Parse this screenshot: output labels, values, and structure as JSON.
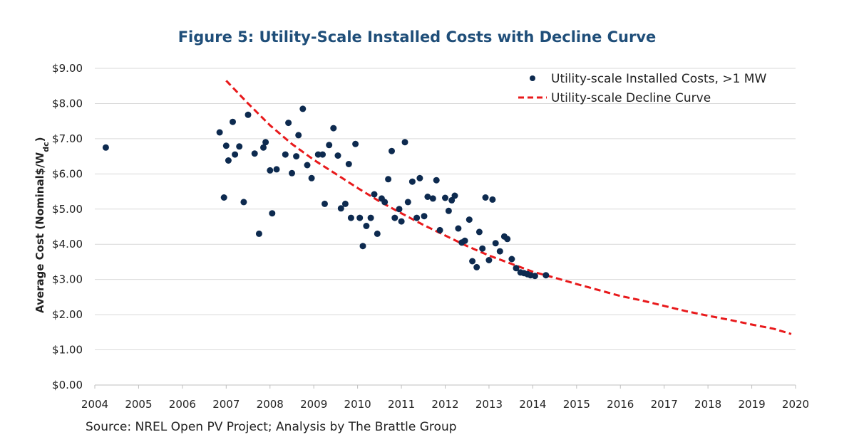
{
  "chart_data": {
    "type": "scatter",
    "title": "Figure 5: Utility-Scale Installed Costs with Decline Curve",
    "ylabel_main": "Average Cost (Nominal$/W",
    "ylabel_sub": "dc",
    "ylabel_close": ")",
    "xlabel": "",
    "xlim": [
      2004,
      2020
    ],
    "ylim": [
      0,
      9
    ],
    "x_ticks": [
      "2004",
      "2005",
      "2006",
      "2007",
      "2008",
      "2009",
      "2010",
      "2011",
      "2012",
      "2013",
      "2014",
      "2015",
      "2016",
      "2017",
      "2018",
      "2019",
      "2020"
    ],
    "y_ticks": [
      "$0.00",
      "$1.00",
      "$2.00",
      "$3.00",
      "$4.00",
      "$5.00",
      "$6.00",
      "$7.00",
      "$8.00",
      "$9.00"
    ],
    "y_tick_values": [
      0,
      1,
      2,
      3,
      4,
      5,
      6,
      7,
      8,
      9
    ],
    "grid": "horizontal",
    "legend_position": "top-right",
    "colors": {
      "scatter": "#0d2a4f",
      "curve": "#e8191b",
      "grid": "#d9d9d9",
      "title": "#1f4e79"
    },
    "series": [
      {
        "name": "Utility-scale Installed Costs, >1 MW",
        "kind": "scatter",
        "points": [
          [
            2004.25,
            6.75
          ],
          [
            2006.85,
            7.18
          ],
          [
            2006.95,
            5.33
          ],
          [
            2007.0,
            6.8
          ],
          [
            2007.05,
            6.38
          ],
          [
            2007.15,
            7.48
          ],
          [
            2007.2,
            6.55
          ],
          [
            2007.3,
            6.78
          ],
          [
            2007.4,
            5.2
          ],
          [
            2007.5,
            7.68
          ],
          [
            2007.65,
            6.58
          ],
          [
            2007.75,
            4.3
          ],
          [
            2007.85,
            6.75
          ],
          [
            2007.9,
            6.9
          ],
          [
            2008.0,
            6.1
          ],
          [
            2008.05,
            4.88
          ],
          [
            2008.15,
            6.13
          ],
          [
            2008.35,
            6.55
          ],
          [
            2008.42,
            7.45
          ],
          [
            2008.5,
            6.02
          ],
          [
            2008.6,
            6.5
          ],
          [
            2008.65,
            7.1
          ],
          [
            2008.75,
            7.85
          ],
          [
            2008.85,
            6.25
          ],
          [
            2008.95,
            5.88
          ],
          [
            2009.1,
            6.55
          ],
          [
            2009.2,
            6.55
          ],
          [
            2009.25,
            5.15
          ],
          [
            2009.35,
            6.82
          ],
          [
            2009.45,
            7.3
          ],
          [
            2009.55,
            6.52
          ],
          [
            2009.62,
            5.02
          ],
          [
            2009.72,
            5.15
          ],
          [
            2009.8,
            6.28
          ],
          [
            2009.85,
            4.75
          ],
          [
            2009.95,
            6.85
          ],
          [
            2010.05,
            4.75
          ],
          [
            2010.12,
            3.95
          ],
          [
            2010.2,
            4.52
          ],
          [
            2010.3,
            4.75
          ],
          [
            2010.38,
            5.42
          ],
          [
            2010.45,
            4.3
          ],
          [
            2010.55,
            5.3
          ],
          [
            2010.62,
            5.2
          ],
          [
            2010.7,
            5.85
          ],
          [
            2010.78,
            6.65
          ],
          [
            2010.85,
            4.75
          ],
          [
            2010.95,
            5.0
          ],
          [
            2011.0,
            4.65
          ],
          [
            2011.08,
            6.9
          ],
          [
            2011.15,
            5.2
          ],
          [
            2011.25,
            5.78
          ],
          [
            2011.35,
            4.75
          ],
          [
            2011.42,
            5.88
          ],
          [
            2011.52,
            4.8
          ],
          [
            2011.6,
            5.35
          ],
          [
            2011.72,
            5.3
          ],
          [
            2011.8,
            5.82
          ],
          [
            2011.88,
            4.4
          ],
          [
            2012.0,
            5.32
          ],
          [
            2012.08,
            4.95
          ],
          [
            2012.15,
            5.25
          ],
          [
            2012.22,
            5.38
          ],
          [
            2012.3,
            4.45
          ],
          [
            2012.38,
            4.05
          ],
          [
            2012.45,
            4.1
          ],
          [
            2012.55,
            4.7
          ],
          [
            2012.62,
            3.52
          ],
          [
            2012.72,
            3.35
          ],
          [
            2012.78,
            4.35
          ],
          [
            2012.85,
            3.88
          ],
          [
            2012.92,
            5.33
          ],
          [
            2013.0,
            3.55
          ],
          [
            2013.08,
            5.27
          ],
          [
            2013.15,
            4.03
          ],
          [
            2013.25,
            3.8
          ],
          [
            2013.35,
            4.22
          ],
          [
            2013.42,
            4.15
          ],
          [
            2013.52,
            3.58
          ],
          [
            2013.62,
            3.32
          ],
          [
            2013.72,
            3.2
          ],
          [
            2013.8,
            3.18
          ],
          [
            2013.88,
            3.15
          ],
          [
            2013.95,
            3.12
          ],
          [
            2014.05,
            3.1
          ],
          [
            2014.3,
            3.12
          ]
        ]
      },
      {
        "name": "Utility-scale Decline Curve",
        "kind": "line",
        "style": "dashed",
        "points": [
          [
            2007.0,
            8.65
          ],
          [
            2007.5,
            8.0
          ],
          [
            2008.0,
            7.38
          ],
          [
            2008.5,
            6.85
          ],
          [
            2009.0,
            6.4
          ],
          [
            2009.5,
            6.0
          ],
          [
            2010.0,
            5.6
          ],
          [
            2010.5,
            5.22
          ],
          [
            2011.0,
            4.88
          ],
          [
            2011.5,
            4.55
          ],
          [
            2012.0,
            4.25
          ],
          [
            2012.5,
            3.95
          ],
          [
            2013.0,
            3.68
          ],
          [
            2013.5,
            3.45
          ],
          [
            2014.0,
            3.22
          ],
          [
            2014.5,
            3.05
          ],
          [
            2015.0,
            2.87
          ],
          [
            2015.5,
            2.7
          ],
          [
            2016.0,
            2.53
          ],
          [
            2016.5,
            2.4
          ],
          [
            2017.0,
            2.25
          ],
          [
            2017.5,
            2.1
          ],
          [
            2018.0,
            1.97
          ],
          [
            2018.5,
            1.85
          ],
          [
            2019.0,
            1.72
          ],
          [
            2019.5,
            1.6
          ],
          [
            2019.9,
            1.45
          ]
        ]
      }
    ]
  },
  "source": "Source: NREL Open PV Project; Analysis by The Brattle Group"
}
